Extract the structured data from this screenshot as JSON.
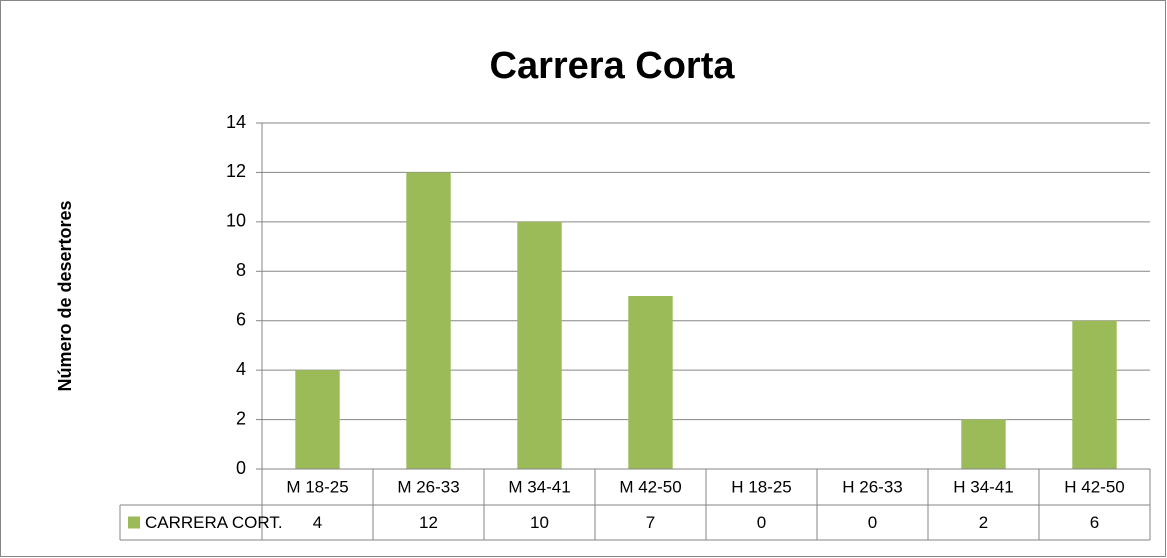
{
  "chart_data": {
    "type": "bar",
    "title": "Carrera Corta",
    "y_label": "Número de desertores",
    "categories": [
      "M 18-25",
      "M 26-33",
      "M 34-41",
      "M 42-50",
      "H 18-25",
      "H 26-33",
      "H 34-41",
      "H 42-50"
    ],
    "series": [
      {
        "name": "CARRERA CORT.",
        "color": "#9bbb59",
        "values": [
          4,
          12,
          10,
          7,
          0,
          0,
          2,
          6
        ]
      }
    ],
    "ylim": [
      0,
      14
    ],
    "yticks": [
      0,
      2,
      4,
      6,
      8,
      10,
      12,
      14
    ],
    "grid": true,
    "data_table": true
  }
}
